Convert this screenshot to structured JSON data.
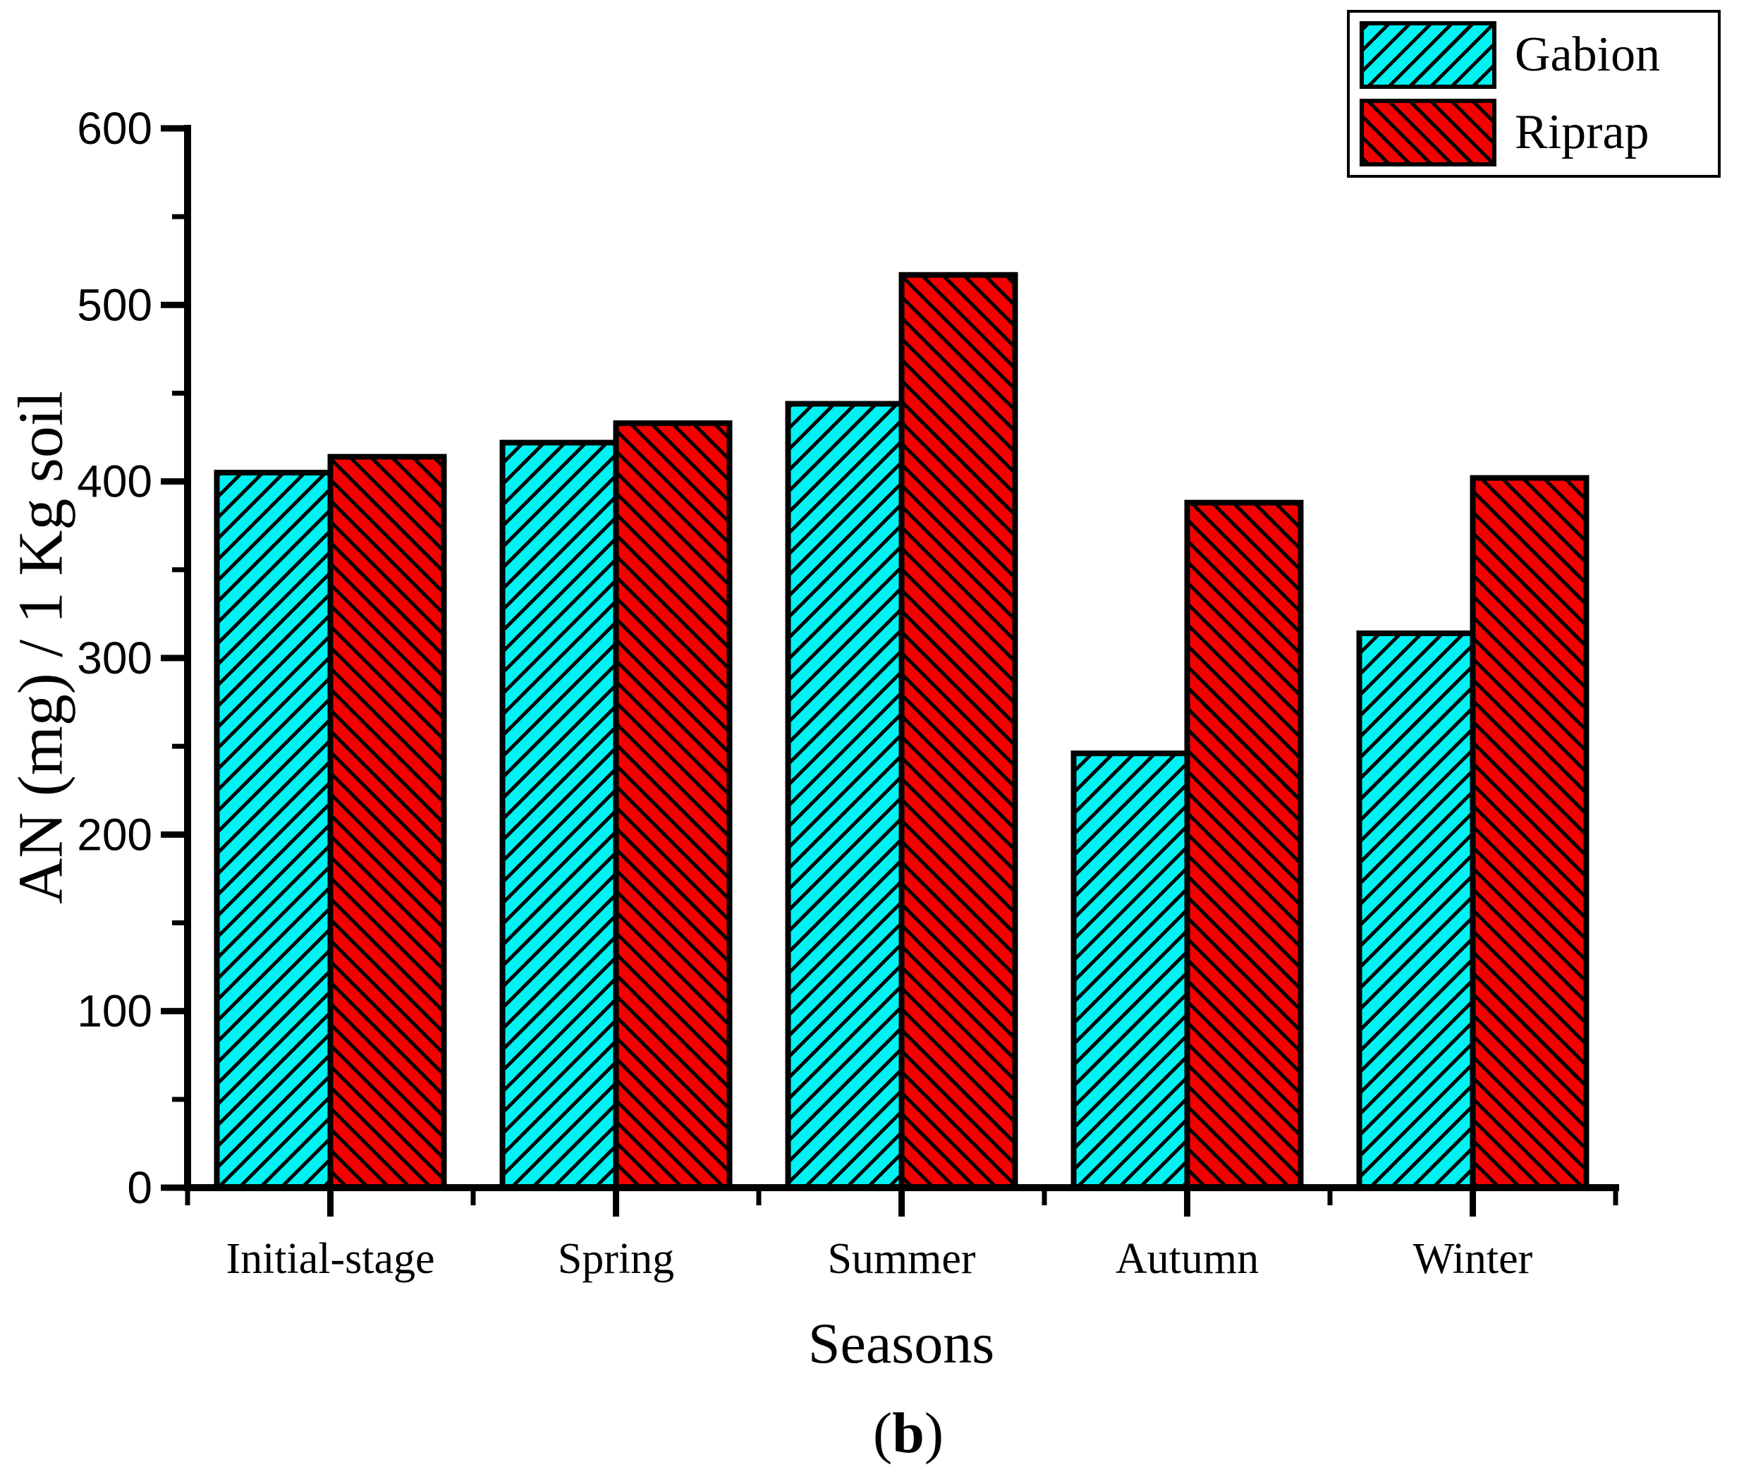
{
  "figure": {
    "caption_open": "(",
    "caption_letter": "b",
    "caption_close": ")"
  },
  "chart_data": {
    "type": "bar",
    "title": "",
    "xlabel": "Seasons",
    "ylabel": "AN (mg) / 1 Kg soil",
    "categories": [
      "Initial-stage",
      "Spring",
      "Summer",
      "Autumn",
      "Winter"
    ],
    "series": [
      {
        "name": "Gabion",
        "color": "#00F2F2",
        "hatch": "/",
        "values": [
          405,
          422,
          444,
          246,
          314
        ]
      },
      {
        "name": "Riprap",
        "color": "#F50000",
        "hatch": "\\",
        "values": [
          414,
          433,
          517,
          388,
          402
        ]
      }
    ],
    "ylim": [
      0,
      600
    ],
    "ytick_step": 100,
    "yminor_step": 50,
    "yticks": [
      0,
      100,
      200,
      300,
      400,
      500,
      600
    ],
    "grid": false,
    "legend_position": "top-right",
    "bar_edge_color": "#000000",
    "axis_color": "#000000"
  }
}
